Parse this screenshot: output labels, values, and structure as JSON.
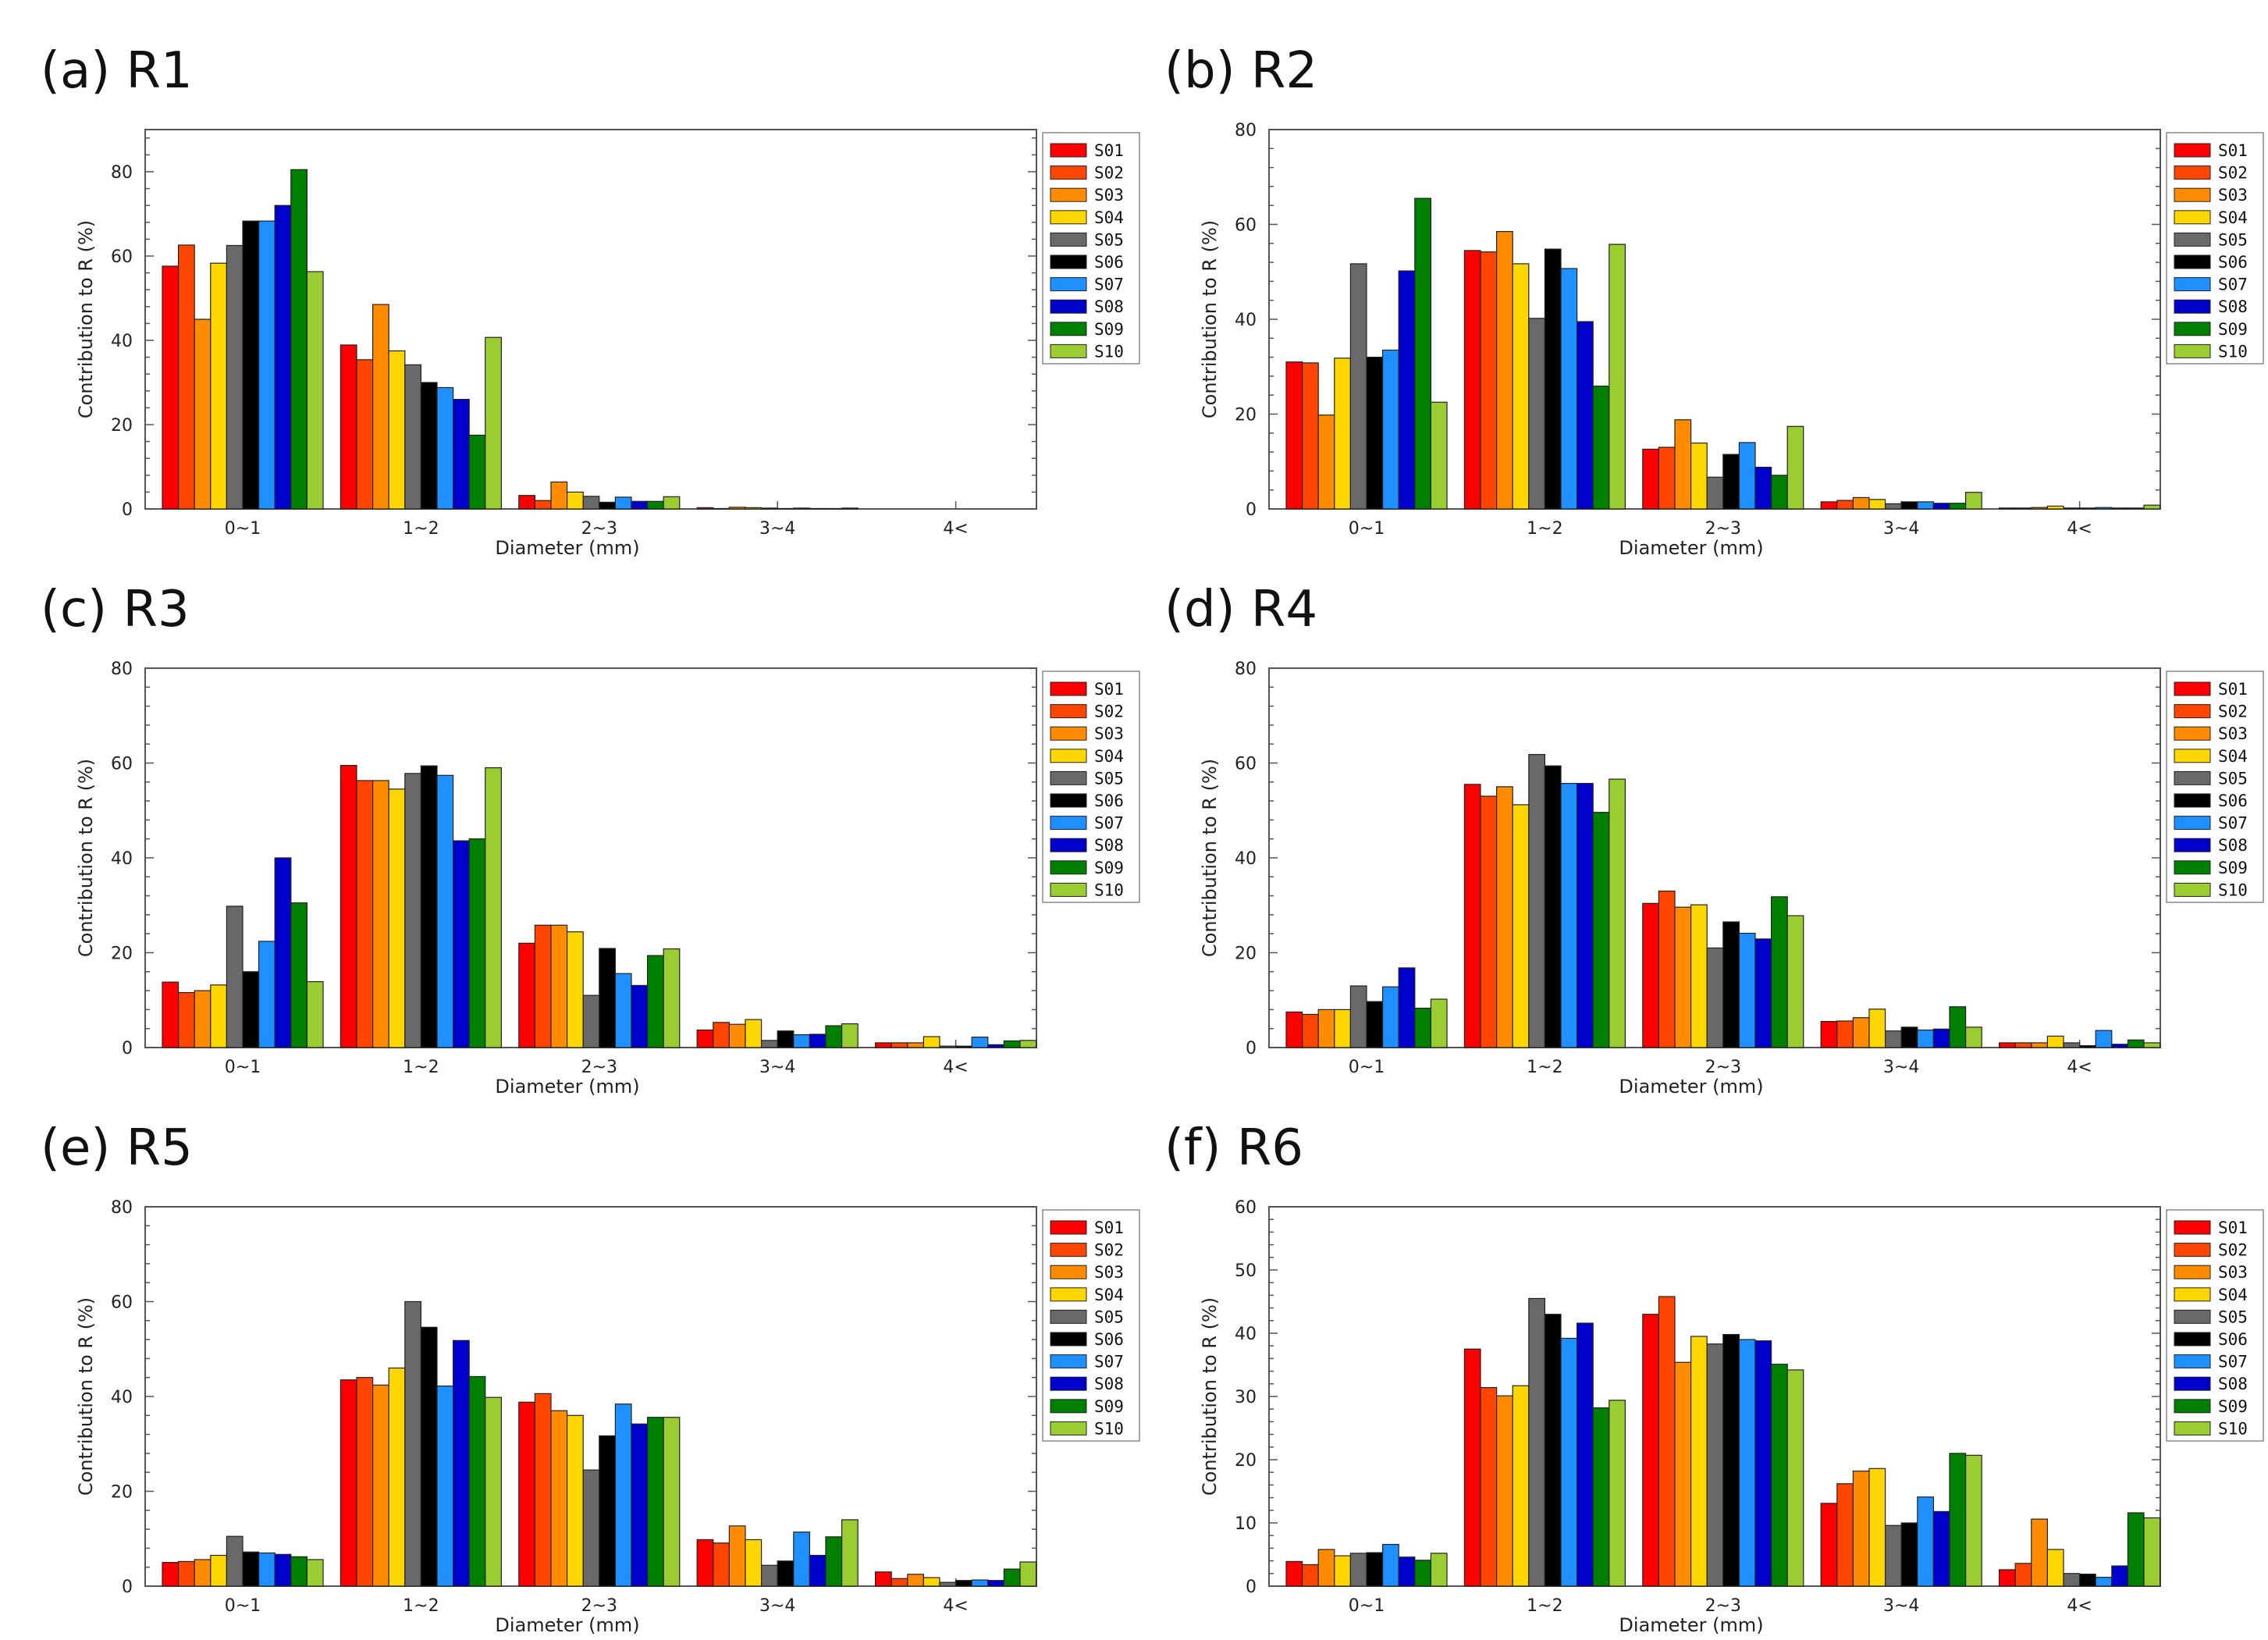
{
  "chart_data": [
    {
      "type": "bar",
      "title": "(a) R1",
      "xlabel": "Diameter (mm)",
      "ylabel": "Contribution to R (%)",
      "ylim": [
        0,
        90
      ],
      "yticks": [
        0,
        20,
        40,
        60,
        80
      ],
      "categories": [
        "0~1",
        "1~2",
        "2~3",
        "3~4",
        "4<"
      ],
      "series": [
        {
          "name": "S01",
          "color": "#ff0000",
          "values": [
            57.6,
            38.9,
            3.2,
            0.3,
            0
          ]
        },
        {
          "name": "S02",
          "color": "#ff4500",
          "values": [
            62.6,
            35.4,
            2.0,
            0.1,
            0
          ]
        },
        {
          "name": "S03",
          "color": "#ff8c00",
          "values": [
            45.0,
            48.5,
            6.4,
            0.4,
            0
          ]
        },
        {
          "name": "S04",
          "color": "#ffd700",
          "values": [
            58.3,
            37.5,
            4.0,
            0.3,
            0
          ]
        },
        {
          "name": "S05",
          "color": "#696969",
          "values": [
            62.5,
            34.2,
            3.0,
            0.2,
            0
          ]
        },
        {
          "name": "S06",
          "color": "#000000",
          "values": [
            68.3,
            30.0,
            1.6,
            0.1,
            0
          ]
        },
        {
          "name": "S07",
          "color": "#1e90ff",
          "values": [
            68.3,
            28.8,
            2.8,
            0.2,
            0
          ]
        },
        {
          "name": "S08",
          "color": "#0000cd",
          "values": [
            72.0,
            26.0,
            1.8,
            0.1,
            0
          ]
        },
        {
          "name": "S09",
          "color": "#008000",
          "values": [
            80.5,
            17.5,
            1.8,
            0.1,
            0
          ]
        },
        {
          "name": "S10",
          "color": "#9acd32",
          "values": [
            56.3,
            40.7,
            2.9,
            0.2,
            0
          ]
        }
      ]
    },
    {
      "type": "bar",
      "title": "(b) R2",
      "xlabel": "Diameter (mm)",
      "ylabel": "Contribution to R (%)",
      "ylim": [
        0,
        80
      ],
      "yticks": [
        0,
        20,
        40,
        60,
        80
      ],
      "categories": [
        "0~1",
        "1~2",
        "2~3",
        "3~4",
        "4<"
      ],
      "series": [
        {
          "name": "S01",
          "color": "#ff0000",
          "values": [
            31.0,
            54.5,
            12.6,
            1.5,
            0.2
          ]
        },
        {
          "name": "S02",
          "color": "#ff4500",
          "values": [
            30.8,
            54.2,
            13.0,
            1.8,
            0.2
          ]
        },
        {
          "name": "S03",
          "color": "#ff8c00",
          "values": [
            19.8,
            58.5,
            18.8,
            2.4,
            0.3
          ]
        },
        {
          "name": "S04",
          "color": "#ffd700",
          "values": [
            31.8,
            51.7,
            13.9,
            2.0,
            0.6
          ]
        },
        {
          "name": "S05",
          "color": "#696969",
          "values": [
            51.7,
            40.2,
            6.7,
            1.1,
            0.2
          ]
        },
        {
          "name": "S06",
          "color": "#000000",
          "values": [
            32.0,
            54.8,
            11.5,
            1.5,
            0.2
          ]
        },
        {
          "name": "S07",
          "color": "#1e90ff",
          "values": [
            33.5,
            50.7,
            14.0,
            1.5,
            0.3
          ]
        },
        {
          "name": "S08",
          "color": "#0000cd",
          "values": [
            50.2,
            39.5,
            8.8,
            1.2,
            0.2
          ]
        },
        {
          "name": "S09",
          "color": "#008000",
          "values": [
            65.5,
            25.9,
            7.1,
            1.2,
            0.2
          ]
        },
        {
          "name": "S10",
          "color": "#9acd32",
          "values": [
            22.5,
            55.8,
            17.4,
            3.5,
            0.8
          ]
        }
      ]
    },
    {
      "type": "bar",
      "title": "(c) R3",
      "xlabel": "Diameter (mm)",
      "ylabel": "Contribution to R (%)",
      "ylim": [
        0,
        80
      ],
      "yticks": [
        0,
        20,
        40,
        60,
        80
      ],
      "categories": [
        "0~1",
        "1~2",
        "2~3",
        "3~4",
        "4<"
      ],
      "series": [
        {
          "name": "S01",
          "color": "#ff0000",
          "values": [
            13.8,
            59.5,
            22.0,
            3.7,
            1.0
          ]
        },
        {
          "name": "S02",
          "color": "#ff4500",
          "values": [
            11.6,
            56.3,
            25.8,
            5.3,
            1.0
          ]
        },
        {
          "name": "S03",
          "color": "#ff8c00",
          "values": [
            12.0,
            56.3,
            25.8,
            4.9,
            1.0
          ]
        },
        {
          "name": "S04",
          "color": "#ffd700",
          "values": [
            13.2,
            54.5,
            24.4,
            5.9,
            2.3
          ]
        },
        {
          "name": "S05",
          "color": "#696969",
          "values": [
            29.8,
            57.8,
            11.0,
            1.5,
            0.3
          ]
        },
        {
          "name": "S06",
          "color": "#000000",
          "values": [
            16.0,
            59.4,
            20.9,
            3.5,
            0.3
          ]
        },
        {
          "name": "S07",
          "color": "#1e90ff",
          "values": [
            22.4,
            57.4,
            15.6,
            2.7,
            2.2
          ]
        },
        {
          "name": "S08",
          "color": "#0000cd",
          "values": [
            40.0,
            43.6,
            13.1,
            2.8,
            0.6
          ]
        },
        {
          "name": "S09",
          "color": "#008000",
          "values": [
            30.5,
            44.0,
            19.4,
            4.6,
            1.4
          ]
        },
        {
          "name": "S10",
          "color": "#9acd32",
          "values": [
            13.9,
            59.0,
            20.8,
            5.0,
            1.5
          ]
        }
      ]
    },
    {
      "type": "bar",
      "title": "(d) R4",
      "xlabel": "Diameter (mm)",
      "ylabel": "Contribution to R (%)",
      "ylim": [
        0,
        80
      ],
      "yticks": [
        0,
        20,
        40,
        60,
        80
      ],
      "categories": [
        "0~1",
        "1~2",
        "2~3",
        "3~4",
        "4<"
      ],
      "series": [
        {
          "name": "S01",
          "color": "#ff0000",
          "values": [
            7.5,
            55.5,
            30.4,
            5.5,
            1.0
          ]
        },
        {
          "name": "S02",
          "color": "#ff4500",
          "values": [
            7.0,
            53.0,
            33.0,
            5.6,
            1.0
          ]
        },
        {
          "name": "S03",
          "color": "#ff8c00",
          "values": [
            8.0,
            55.0,
            29.6,
            6.3,
            1.0
          ]
        },
        {
          "name": "S04",
          "color": "#ffd700",
          "values": [
            8.0,
            51.2,
            30.1,
            8.1,
            2.4
          ]
        },
        {
          "name": "S05",
          "color": "#696969",
          "values": [
            13.0,
            61.8,
            21.0,
            3.5,
            1.0
          ]
        },
        {
          "name": "S06",
          "color": "#000000",
          "values": [
            9.7,
            59.4,
            26.5,
            4.3,
            0.4
          ]
        },
        {
          "name": "S07",
          "color": "#1e90ff",
          "values": [
            12.8,
            55.7,
            24.1,
            3.7,
            3.6
          ]
        },
        {
          "name": "S08",
          "color": "#0000cd",
          "values": [
            16.8,
            55.7,
            22.9,
            3.9,
            0.7
          ]
        },
        {
          "name": "S09",
          "color": "#008000",
          "values": [
            8.3,
            49.6,
            31.8,
            8.6,
            1.6
          ]
        },
        {
          "name": "S10",
          "color": "#9acd32",
          "values": [
            10.2,
            56.6,
            27.8,
            4.3,
            1.0
          ]
        }
      ]
    },
    {
      "type": "bar",
      "title": "(e) R5",
      "xlabel": "Diameter (mm)",
      "ylabel": "Contribution to R (%)",
      "ylim": [
        0,
        80
      ],
      "yticks": [
        0,
        20,
        40,
        60,
        80
      ],
      "categories": [
        "0~1",
        "1~2",
        "2~3",
        "3~4",
        "4<"
      ],
      "series": [
        {
          "name": "S01",
          "color": "#ff0000",
          "values": [
            5.0,
            43.5,
            38.8,
            9.8,
            3.0
          ]
        },
        {
          "name": "S02",
          "color": "#ff4500",
          "values": [
            5.2,
            44.0,
            40.6,
            9.1,
            1.6
          ]
        },
        {
          "name": "S03",
          "color": "#ff8c00",
          "values": [
            5.6,
            42.4,
            37.0,
            12.7,
            2.5
          ]
        },
        {
          "name": "S04",
          "color": "#ffd700",
          "values": [
            6.5,
            46.0,
            36.0,
            9.8,
            1.8
          ]
        },
        {
          "name": "S05",
          "color": "#696969",
          "values": [
            10.5,
            60.0,
            24.5,
            4.4,
            0.8
          ]
        },
        {
          "name": "S06",
          "color": "#000000",
          "values": [
            7.2,
            54.6,
            31.7,
            5.3,
            1.2
          ]
        },
        {
          "name": "S07",
          "color": "#1e90ff",
          "values": [
            7.0,
            42.2,
            38.4,
            11.4,
            1.3
          ]
        },
        {
          "name": "S08",
          "color": "#0000cd",
          "values": [
            6.7,
            51.8,
            34.2,
            6.5,
            1.2
          ]
        },
        {
          "name": "S09",
          "color": "#008000",
          "values": [
            6.2,
            44.2,
            35.6,
            10.4,
            3.6
          ]
        },
        {
          "name": "S10",
          "color": "#9acd32",
          "values": [
            5.6,
            39.8,
            35.6,
            14.0,
            5.1
          ]
        }
      ]
    },
    {
      "type": "bar",
      "title": "(f) R6",
      "xlabel": "Diameter (mm)",
      "ylabel": "Contribution to R (%)",
      "ylim": [
        0,
        60
      ],
      "yticks": [
        0,
        10,
        20,
        30,
        40,
        50,
        60
      ],
      "categories": [
        "0~1",
        "1~2",
        "2~3",
        "3~4",
        "4<"
      ],
      "series": [
        {
          "name": "S01",
          "color": "#ff0000",
          "values": [
            3.9,
            37.5,
            43.0,
            13.1,
            2.6
          ]
        },
        {
          "name": "S02",
          "color": "#ff4500",
          "values": [
            3.4,
            31.4,
            45.8,
            16.2,
            3.6
          ]
        },
        {
          "name": "S03",
          "color": "#ff8c00",
          "values": [
            5.8,
            30.1,
            35.4,
            18.2,
            10.6
          ]
        },
        {
          "name": "S04",
          "color": "#ffd700",
          "values": [
            4.8,
            31.7,
            39.5,
            18.6,
            5.8
          ]
        },
        {
          "name": "S05",
          "color": "#696969",
          "values": [
            5.2,
            45.5,
            38.3,
            9.6,
            2.0
          ]
        },
        {
          "name": "S06",
          "color": "#000000",
          "values": [
            5.3,
            43.0,
            39.8,
            10.0,
            1.9
          ]
        },
        {
          "name": "S07",
          "color": "#1e90ff",
          "values": [
            6.6,
            39.2,
            39.0,
            14.1,
            1.4
          ]
        },
        {
          "name": "S08",
          "color": "#0000cd",
          "values": [
            4.6,
            41.6,
            38.8,
            11.8,
            3.2
          ]
        },
        {
          "name": "S09",
          "color": "#008000",
          "values": [
            4.1,
            28.2,
            35.1,
            21.0,
            11.6
          ]
        },
        {
          "name": "S10",
          "color": "#9acd32",
          "values": [
            5.2,
            29.4,
            34.2,
            20.7,
            10.8
          ]
        }
      ]
    }
  ]
}
